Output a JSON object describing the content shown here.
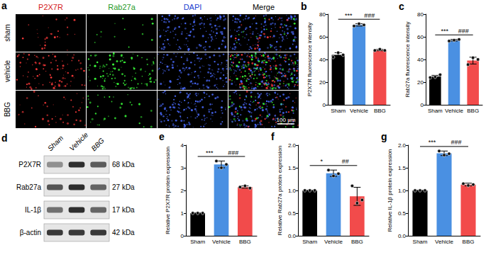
{
  "chart_data": [
    {
      "type": "bar",
      "title": "b",
      "ylabel": "P2X7R fluorescence intensity",
      "categories": [
        "Sham",
        "Vehicle",
        "BBG"
      ],
      "values": [
        44,
        70.5,
        48.3
      ],
      "errors": [
        2,
        1,
        0.6
      ],
      "points": [
        [
          42,
          46,
          44
        ],
        [
          69.5,
          71.5,
          70.5
        ],
        [
          48,
          49,
          48
        ]
      ],
      "colors": [
        "#000000",
        "#4a90e2",
        "#f24b4b"
      ],
      "ylim": [
        0,
        80
      ],
      "yticks": [
        0,
        20,
        40,
        60,
        80
      ],
      "grid": false,
      "annotations": [
        {
          "text": "***",
          "from": "Sham",
          "to": "Vehicle"
        },
        {
          "text": "###",
          "from": "Vehicle",
          "to": "BBG"
        }
      ]
    },
    {
      "type": "bar",
      "title": "c",
      "ylabel": "Rab27a fluorescence intensity",
      "categories": [
        "Sham",
        "Vehicle",
        "BBG"
      ],
      "values": [
        25,
        57,
        39
      ],
      "errors": [
        1,
        0.7,
        3
      ],
      "points": [
        [
          24,
          24.5,
          26.5
        ],
        [
          56.3,
          57,
          57.7
        ],
        [
          35.5,
          41.5,
          40
        ]
      ],
      "colors": [
        "#000000",
        "#4a90e2",
        "#f24b4b"
      ],
      "ylim": [
        0,
        80
      ],
      "yticks": [
        0,
        20,
        40,
        60,
        80
      ],
      "grid": false,
      "annotations": [
        {
          "text": "***",
          "from": "Sham",
          "to": "Vehicle"
        },
        {
          "text": "###",
          "from": "Vehicle",
          "to": "BBG"
        }
      ]
    },
    {
      "type": "bar",
      "title": "e",
      "ylabel": "Relative P2X7R protein expression",
      "categories": [
        "Sham",
        "Vehicle",
        "BBG"
      ],
      "values": [
        1,
        3.15,
        2.15
      ],
      "errors": [
        0,
        0.15,
        0.05
      ],
      "points": [
        [
          1,
          1,
          1
        ],
        [
          3.3,
          3.0,
          3.15
        ],
        [
          2.15,
          2.2,
          2.1
        ]
      ],
      "colors": [
        "#000000",
        "#4a90e2",
        "#f24b4b"
      ],
      "ylim": [
        0,
        4
      ],
      "yticks": [
        0,
        1,
        2,
        3,
        4
      ],
      "grid": false,
      "annotations": [
        {
          "text": "***",
          "from": "Sham",
          "to": "Vehicle"
        },
        {
          "text": "###",
          "from": "Vehicle",
          "to": "BBG"
        }
      ]
    },
    {
      "type": "bar",
      "title": "f",
      "ylabel": "Relative Rab27a protein expression",
      "categories": [
        "Sham",
        "Vehicle",
        "BBG"
      ],
      "values": [
        1,
        1.38,
        0.87
      ],
      "errors": [
        0,
        0.07,
        0.2
      ],
      "points": [
        [
          1,
          1,
          1
        ],
        [
          1.45,
          1.32,
          1.37
        ],
        [
          1.1,
          0.72,
          0.79
        ]
      ],
      "colors": [
        "#000000",
        "#4a90e2",
        "#f24b4b"
      ],
      "ylim": [
        0,
        2
      ],
      "yticks": [
        {
          "value": 0,
          "label": "0.0"
        },
        0.5,
        {
          "value": 1,
          "label": "1.0"
        },
        1.5,
        {
          "value": 2,
          "label": "2.0"
        }
      ],
      "grid": false,
      "annotations": [
        {
          "text": "*",
          "from": "Sham",
          "to": "Vehicle"
        },
        {
          "text": "##",
          "from": "Vehicle",
          "to": "BBG"
        }
      ]
    },
    {
      "type": "bar",
      "title": "g",
      "ylabel": "Relative IL-1β protein expression",
      "categories": [
        "Sham",
        "Vehicle",
        "BBG"
      ],
      "values": [
        1,
        1.82,
        1.13
      ],
      "errors": [
        0,
        0.05,
        0.03
      ],
      "points": [
        [
          1,
          1,
          1
        ],
        [
          1.87,
          1.78,
          1.81
        ],
        [
          1.15,
          1.11,
          1.13
        ]
      ],
      "colors": [
        "#000000",
        "#4a90e2",
        "#f24b4b"
      ],
      "ylim": [
        0,
        2
      ],
      "yticks": [
        {
          "value": 0,
          "label": "0.0"
        },
        0.5,
        {
          "value": 1,
          "label": "1.0"
        },
        1.5,
        {
          "value": 2,
          "label": "2.0"
        }
      ],
      "grid": false,
      "annotations": [
        {
          "text": "***",
          "from": "Sham",
          "to": "Vehicle"
        },
        {
          "text": "###",
          "from": "Vehicle",
          "to": "BBG"
        }
      ]
    }
  ],
  "panel_a": {
    "label": "a",
    "channels": [
      "P2X7R",
      "Rab27a",
      "DAPI",
      "Merge"
    ],
    "groups": [
      "sham",
      "vehicle",
      "BBG"
    ],
    "scale_bar": "100 μm"
  },
  "panel_d": {
    "label": "d",
    "lanes": [
      "Sham",
      "Vehicle",
      "BBG"
    ],
    "blots": [
      {
        "name": "P2X7R",
        "size": "68 kDa"
      },
      {
        "name": "Rab27a",
        "size": "27 kDa"
      },
      {
        "name": "IL-1β",
        "size": "17 kDa"
      },
      {
        "name": "β-actin",
        "size": "42 kDa"
      }
    ]
  }
}
